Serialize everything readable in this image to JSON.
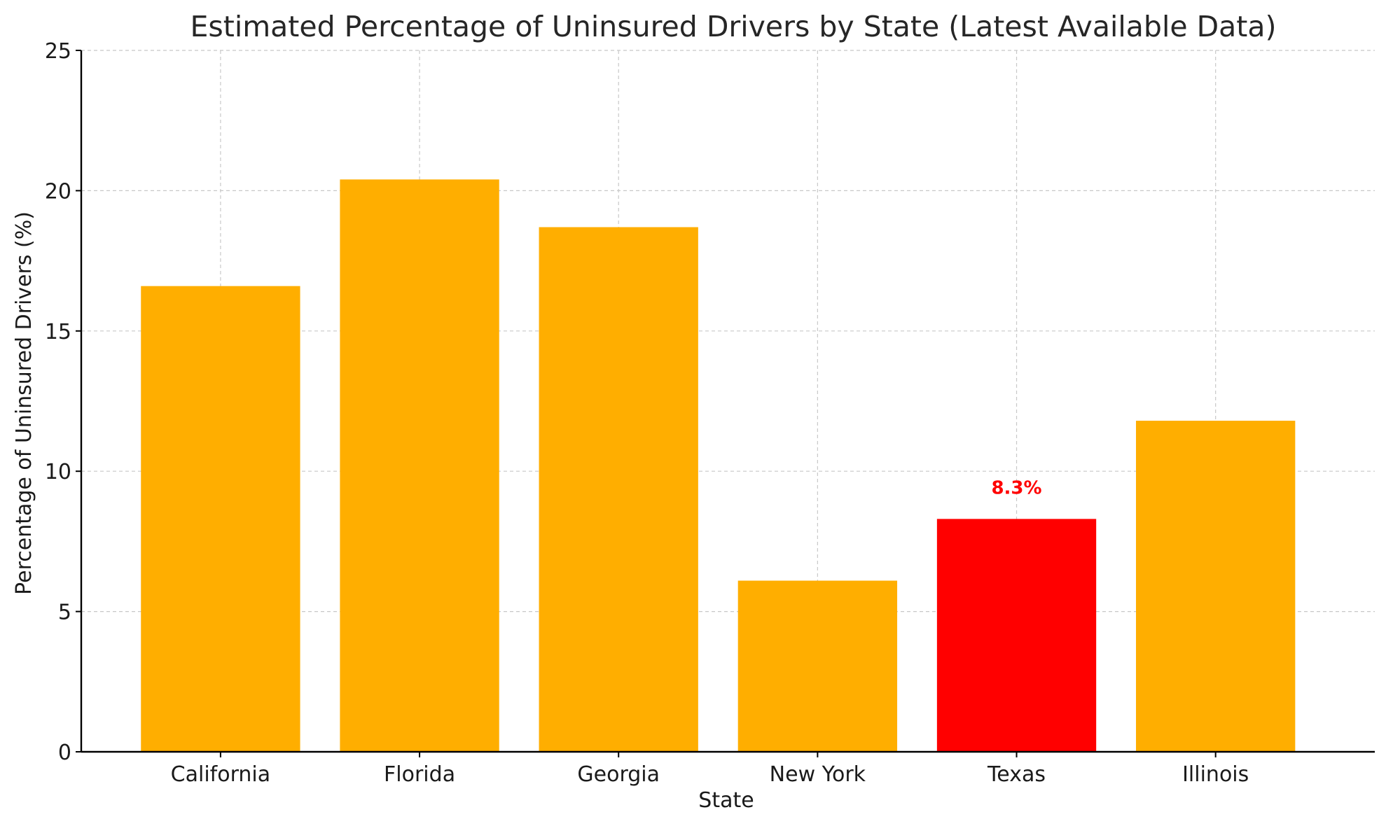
{
  "chart_data": {
    "type": "bar",
    "title": "Estimated Percentage of Uninsured Drivers by State (Latest Available Data)",
    "xlabel": "State",
    "ylabel": "Percentage of Uninsured Drivers (%)",
    "categories": [
      "California",
      "Florida",
      "Georgia",
      "New York",
      "Texas",
      "Illinois"
    ],
    "values": [
      16.6,
      20.4,
      18.7,
      6.1,
      8.3,
      11.8
    ],
    "ylim": [
      0,
      25
    ],
    "yticks": [
      0,
      5,
      10,
      15,
      20,
      25
    ],
    "grid": true,
    "bar_color": "#FFAE00",
    "highlight": {
      "category": "Texas",
      "color": "#FF0000",
      "label": "8.3%"
    }
  }
}
